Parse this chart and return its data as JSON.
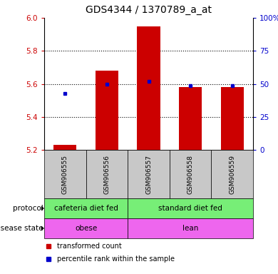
{
  "title": "GDS4344 / 1370789_a_at",
  "samples": [
    "GSM906555",
    "GSM906556",
    "GSM906557",
    "GSM906558",
    "GSM906559"
  ],
  "red_values": [
    5.23,
    5.68,
    5.95,
    5.58,
    5.58
  ],
  "blue_values": [
    5.54,
    5.6,
    5.615,
    5.59,
    5.59
  ],
  "ylim": [
    5.2,
    6.0
  ],
  "yticks_left": [
    5.2,
    5.4,
    5.6,
    5.8,
    6.0
  ],
  "yticks_right": [
    0,
    25,
    50,
    75,
    100
  ],
  "bar_color": "#cc0000",
  "dot_color": "#0000cc",
  "baseline": 5.2,
  "protocol_ranges": [
    [
      0,
      1,
      "cafeteria diet fed"
    ],
    [
      2,
      4,
      "standard diet fed"
    ]
  ],
  "protocol_color": "#77ee77",
  "disease_ranges": [
    [
      0,
      1,
      "obese"
    ],
    [
      2,
      4,
      "lean"
    ]
  ],
  "disease_color": "#ee66ee",
  "legend_red": "transformed count",
  "legend_blue": "percentile rank within the sample",
  "background_color": "#ffffff",
  "label_row_color": "#c8c8c8",
  "title_fontsize": 10,
  "tick_fontsize": 7.5,
  "sample_fontsize": 6.5,
  "row_fontsize": 7.5,
  "legend_fontsize": 7
}
